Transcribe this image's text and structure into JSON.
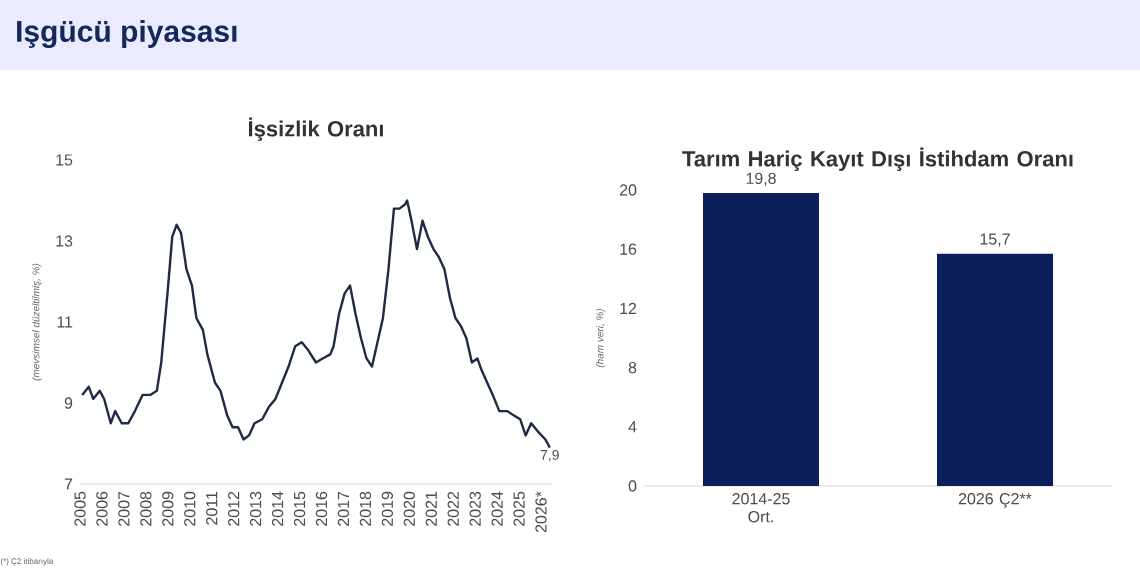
{
  "chart_data": [
    {
      "type": "line",
      "title": "İşsizlik Oranı",
      "ylabel": "(mevsimsel düzeltilmiş, %)",
      "color": "#1f2a44",
      "x": [
        2005.1,
        2005.4,
        2005.6,
        2005.9,
        2006.1,
        2006.4,
        2006.6,
        2006.9,
        2007.2,
        2007.5,
        2007.85,
        2008.2,
        2008.5,
        2008.7,
        2009.0,
        2009.2,
        2009.4,
        2009.6,
        2009.85,
        2010.1,
        2010.3,
        2010.6,
        2010.8,
        2011.15,
        2011.4,
        2011.7,
        2011.95,
        2012.2,
        2012.45,
        2012.7,
        2012.95,
        2013.3,
        2013.6,
        2013.9,
        2014.2,
        2014.5,
        2014.8,
        2015.1,
        2015.4,
        2015.75,
        2016.05,
        2016.4,
        2016.55,
        2016.8,
        2017.05,
        2017.3,
        2017.55,
        2017.8,
        2018.05,
        2018.3,
        2018.55,
        2018.8,
        2019.05,
        2019.3,
        2019.55,
        2019.8,
        2019.9,
        2020.1,
        2020.35,
        2020.6,
        2020.85,
        2021.1,
        2021.35,
        2021.6,
        2021.85,
        2022.1,
        2022.35,
        2022.6,
        2022.85,
        2023.1,
        2023.3,
        2023.55,
        2023.8,
        2024.1,
        2024.45,
        2024.75,
        2025.05,
        2025.3,
        2025.55,
        2025.85,
        2026.2,
        2026.4
      ],
      "values": [
        9.2,
        9.4,
        9.1,
        9.3,
        9.1,
        8.5,
        8.8,
        8.5,
        8.5,
        8.8,
        9.2,
        9.2,
        9.3,
        10.0,
        11.8,
        13.1,
        13.4,
        13.2,
        12.3,
        11.9,
        11.1,
        10.8,
        10.2,
        9.5,
        9.3,
        8.7,
        8.4,
        8.4,
        8.1,
        8.2,
        8.5,
        8.6,
        8.9,
        9.1,
        9.5,
        9.9,
        10.4,
        10.5,
        10.3,
        10.0,
        10.1,
        10.2,
        10.4,
        11.2,
        11.7,
        11.9,
        11.2,
        10.6,
        10.1,
        9.9,
        10.5,
        11.1,
        12.3,
        13.8,
        13.8,
        13.9,
        14.0,
        13.5,
        12.8,
        13.5,
        13.1,
        12.8,
        12.6,
        12.3,
        11.6,
        11.1,
        10.9,
        10.6,
        10.0,
        10.1,
        9.8,
        9.5,
        9.2,
        8.8,
        8.8,
        8.7,
        8.6,
        8.2,
        8.5,
        8.3,
        8.1,
        7.9
      ],
      "xlim": [
        2005,
        2026.5
      ],
      "xticks": [
        2005,
        2006,
        2007,
        2008,
        2009,
        2010,
        2011,
        2012,
        2013,
        2014,
        2015,
        2016,
        2017,
        2018,
        2019,
        2020,
        2021,
        2022,
        2023,
        2024,
        2025,
        {
          "value": 2026,
          "label": "2026*"
        }
      ],
      "ylim": [
        7,
        15
      ],
      "yticks": [
        7,
        9,
        11,
        13,
        15
      ],
      "annotations": [
        "Işgücü piyasası",
        "(*) Ç2 itibarıyla",
        {
          "text": "7,9",
          "x": 2026.4,
          "y": 7.9
        }
      ]
    },
    {
      "type": "bar",
      "title": "Tarım Hariç Kayıt Dışı İstihdam Oranı",
      "ylabel": "(ham veri, %)",
      "color": "#0b1f5c",
      "categories": [
        "2014-25 Ort.",
        "2026 Ç2**"
      ],
      "values": [
        19.8,
        15.7
      ],
      "value_labels": [
        "19,8",
        "15,7"
      ],
      "ylim": [
        0,
        20
      ],
      "yticks": [
        0,
        4,
        8,
        12,
        16,
        20
      ]
    }
  ]
}
